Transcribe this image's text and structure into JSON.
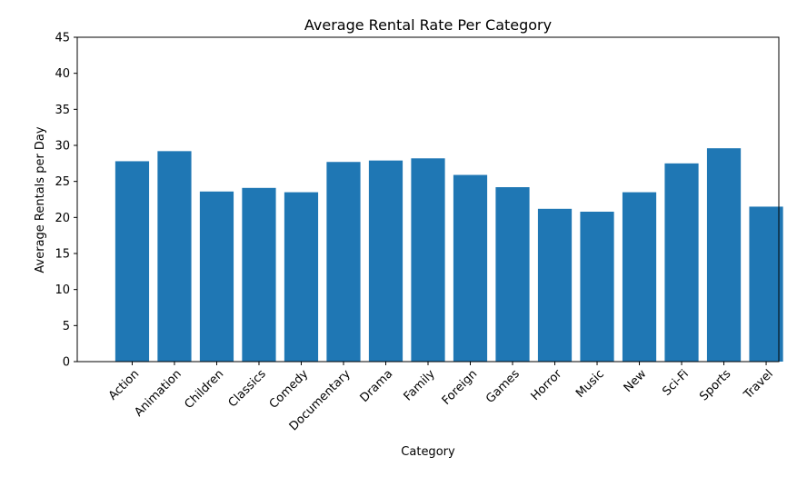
{
  "chart_data": {
    "type": "bar",
    "title": "Average Rental Rate Per Category",
    "xlabel": "Category",
    "ylabel": "Average Rentals per Day",
    "categories": [
      "Action",
      "Animation",
      "Children",
      "Classics",
      "Comedy",
      "Documentary",
      "Drama",
      "Family",
      "Foreign",
      "Games",
      "Horror",
      "Music",
      "New",
      "Sci-Fi",
      "Sports",
      "Travel"
    ],
    "values": [
      27.8,
      29.2,
      23.6,
      24.1,
      23.5,
      27.7,
      27.9,
      28.2,
      25.9,
      24.2,
      21.2,
      20.8,
      23.5,
      27.5,
      29.6,
      21.5
    ],
    "ylim": [
      0,
      45
    ],
    "yticks": [
      "0",
      "5",
      "10",
      "15",
      "20",
      "25",
      "30",
      "35",
      "40",
      "45"
    ],
    "bar_color": "#1f77b4",
    "grid": false,
    "legend": "none"
  }
}
